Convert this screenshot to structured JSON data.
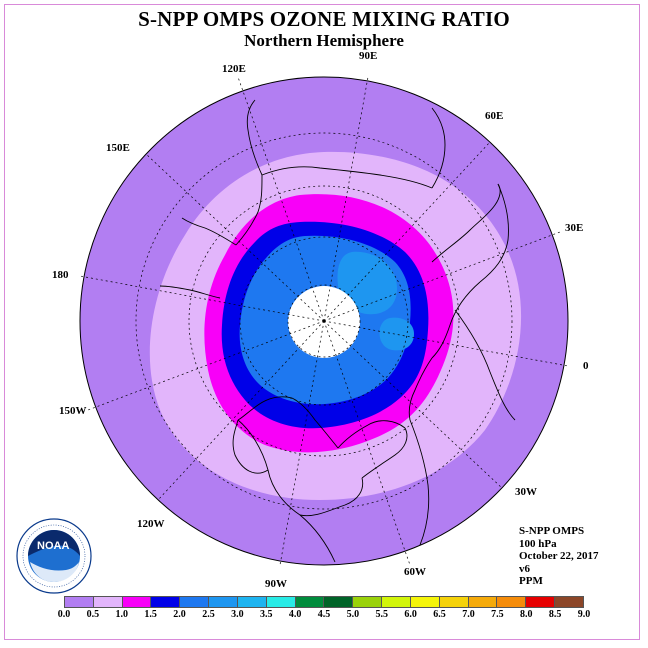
{
  "title": "S-NPP OMPS OZONE MIXING RATIO",
  "subtitle": "Northern Hemisphere",
  "longitude_labels": [
    "90E",
    "60E",
    "30E",
    "0",
    "30W",
    "60W",
    "90W",
    "120W",
    "150W",
    "180",
    "150E",
    "120E"
  ],
  "info": {
    "instrument": "S-NPP OMPS",
    "level": "100 hPa",
    "date": "October 22, 2017",
    "version": "v6",
    "units": "PPM"
  },
  "colorbar": {
    "ticks": [
      "0.0",
      "0.5",
      "1.0",
      "1.5",
      "2.0",
      "2.5",
      "3.0",
      "3.5",
      "4.0",
      "4.5",
      "5.0",
      "5.5",
      "6.0",
      "6.5",
      "7.0",
      "7.5",
      "8.0",
      "8.5",
      "9.0"
    ],
    "colors": [
      "#b27ef2",
      "#e2b5fb",
      "#f800f8",
      "#0000e8",
      "#1e78f0",
      "#1e96f0",
      "#1eb4f0",
      "#28ebe6",
      "#008c3c",
      "#006428",
      "#9ad20a",
      "#d2f50a",
      "#f5f50a",
      "#f5d20a",
      "#f5aa0a",
      "#f58c0a",
      "#e60000",
      "#8c4628"
    ]
  },
  "colors": {
    "outer": "#b27ef2",
    "light_lavender": "#e2b5fb",
    "magenta": "#f800f8",
    "blue": "#0000e8",
    "mid_blue": "#1e78f0",
    "light_blue": "#1e96f0",
    "pole_gap": "#ffffff"
  },
  "logo_label": "NOAA"
}
